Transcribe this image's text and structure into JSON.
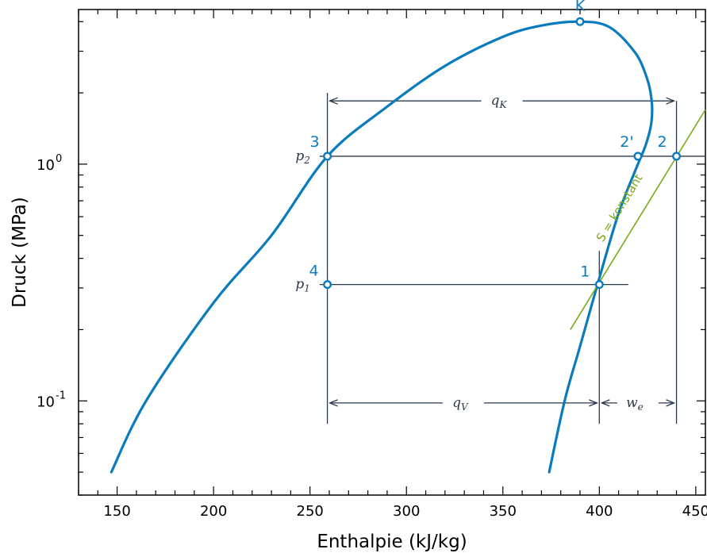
{
  "colors": {
    "curve": "#0a7bbf",
    "cycle": "#2b3a4a",
    "isentrope": "#7aa81d",
    "axis": "#000000"
  },
  "chart_data": {
    "type": "line",
    "xlabel": "Enthalpie (kJ/kg)",
    "ylabel": "Druck (MPa)",
    "xscale": "linear",
    "yscale": "log",
    "xlim": [
      130,
      455
    ],
    "ylim": [
      0.04,
      4.5
    ],
    "grid": false,
    "x_ticks": [
      {
        "value": 150,
        "label": "150"
      },
      {
        "value": 200,
        "label": "200"
      },
      {
        "value": 250,
        "label": "250"
      },
      {
        "value": 300,
        "label": "300"
      },
      {
        "value": 350,
        "label": "350"
      },
      {
        "value": 400,
        "label": "400"
      },
      {
        "value": 450,
        "label": "450"
      }
    ],
    "y_ticks": [
      {
        "value": 0.1,
        "base": "10",
        "exp": "-1"
      },
      {
        "value": 1,
        "base": "10",
        "exp": "0"
      }
    ],
    "series": [
      {
        "role": "saturation-dome",
        "x": [
          147,
          165,
          200,
          230,
          259,
          290,
          320,
          350,
          370,
          390,
          405,
          418,
          424,
          427,
          427,
          424,
          420,
          410,
          400,
          390,
          382,
          374
        ],
        "y": [
          0.05,
          0.1,
          0.26,
          0.5,
          1.08,
          1.75,
          2.6,
          3.45,
          3.85,
          4.0,
          3.8,
          3.0,
          2.4,
          1.9,
          1.5,
          1.2,
          1.0,
          0.62,
          0.33,
          0.17,
          0.1,
          0.05
        ]
      },
      {
        "role": "isentrope",
        "label": "S = konstant",
        "x": [
          385,
          455
        ],
        "y": [
          0.2,
          1.7
        ]
      }
    ],
    "points": [
      {
        "label": "K",
        "x": 390,
        "y": 4.0
      },
      {
        "label": "1",
        "x": 400,
        "y": 0.31
      },
      {
        "label": "2",
        "x": 440,
        "y": 1.08
      },
      {
        "label": "2'",
        "x": 420,
        "y": 1.08
      },
      {
        "label": "3",
        "x": 259,
        "y": 1.08
      },
      {
        "label": "4",
        "x": 259,
        "y": 0.31
      }
    ],
    "pressure_lines": [
      {
        "symbol": "p",
        "sub": "2",
        "y": 1.08,
        "x_start": 255,
        "x_end": 455
      },
      {
        "symbol": "p",
        "sub": "1",
        "y": 0.31,
        "x_start": 255,
        "x_end": 415
      }
    ],
    "vertical_lines": [
      {
        "x": 259,
        "y_bottom": 0.08,
        "y_top": 2.0
      },
      {
        "x": 400,
        "y_bottom": 0.08,
        "y_top": 0.43
      },
      {
        "x": 440,
        "y_bottom": 0.08,
        "y_top": 1.85
      }
    ],
    "dimensions": [
      {
        "symbol": "q",
        "sub": "K",
        "x_start": 259,
        "x_end": 440,
        "y": 1.85
      },
      {
        "symbol": "q",
        "sub": "V",
        "x_start": 259,
        "x_end": 400,
        "y": 0.098
      },
      {
        "symbol": "w",
        "sub": "e",
        "x_start": 400,
        "x_end": 440,
        "y": 0.098
      }
    ]
  }
}
